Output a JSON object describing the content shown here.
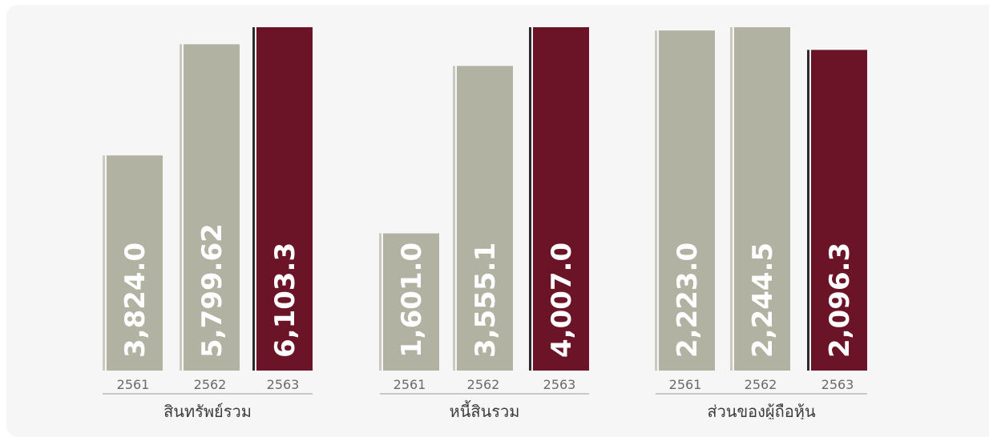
{
  "chart_data": [
    {
      "type": "bar",
      "categories": [
        "2561",
        "2562",
        "2563"
      ],
      "values": [
        3824.0,
        5799.62,
        6103.3
      ],
      "value_labels": [
        "3,824.0",
        "5,799.62",
        "6,103.3"
      ],
      "xlabel": "สินทรัพย์รวม",
      "highlight_index": 2
    },
    {
      "type": "bar",
      "categories": [
        "2561",
        "2562",
        "2563"
      ],
      "values": [
        1601.0,
        3555.1,
        4007.0
      ],
      "value_labels": [
        "1,601.0",
        "3,555.1",
        "4,007.0"
      ],
      "xlabel": "หนี้สินรวม",
      "highlight_index": 2
    },
    {
      "type": "bar",
      "categories": [
        "2561",
        "2562",
        "2563"
      ],
      "values": [
        2223.0,
        2244.5,
        2096.3
      ],
      "value_labels": [
        "2,223.0",
        "2,244.5",
        "2,096.3"
      ],
      "xlabel": "ส่วนของผู้ถือหุ้น",
      "highlight_index": 2
    }
  ],
  "colors": {
    "bar": "#b1b2a2",
    "highlight": "#6b1327",
    "bar_edge": "#c9c9bd",
    "highlight_edge": "#2b2b2b",
    "axis": "#9a9a9a",
    "panel": "#f6f6f6"
  }
}
